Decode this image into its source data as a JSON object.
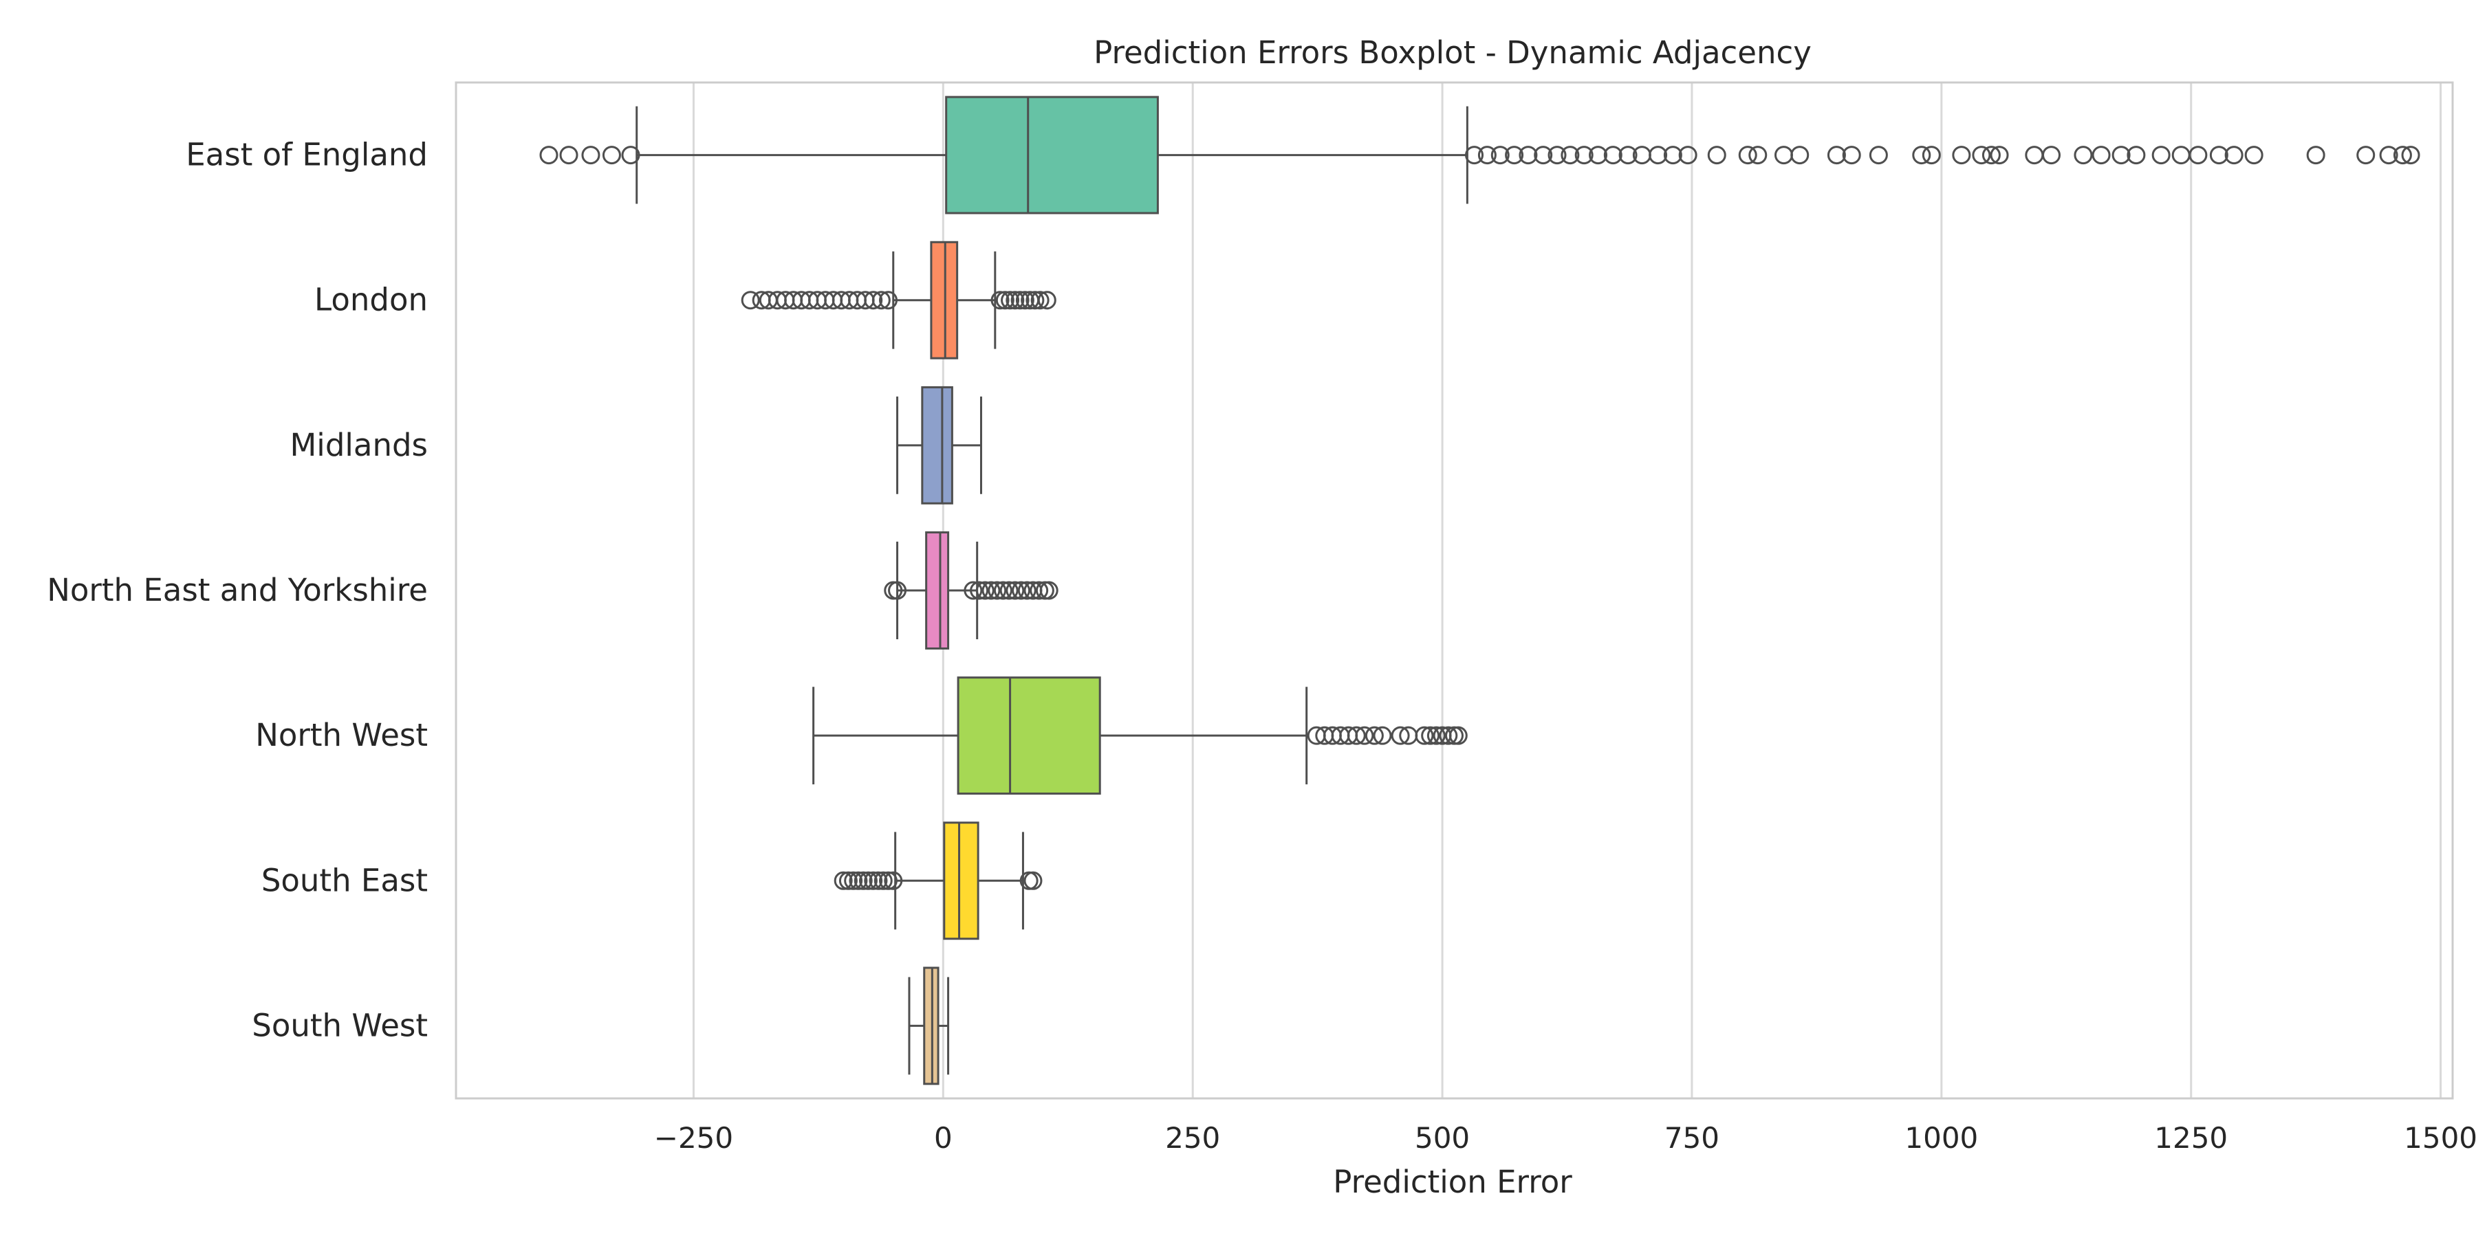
{
  "chart_data": {
    "type": "boxplot",
    "title": "Prediction Errors Boxplot - Dynamic Adjacency",
    "xlabel": "Prediction Error",
    "ylabel": "",
    "xlim": [
      -488,
      1512
    ],
    "xticks": [
      -250,
      0,
      250,
      500,
      750,
      1000,
      1250,
      1500
    ],
    "xtick_labels": [
      "−250",
      "0",
      "250",
      "500",
      "750",
      "1000",
      "1250",
      "1500"
    ],
    "grid": "vertical",
    "categories": [
      "East of England",
      "London",
      "Midlands",
      "North East and Yorkshire",
      "North West",
      "South East",
      "South West"
    ],
    "colors": [
      "#66c2a5",
      "#fc8d62",
      "#8da0cb",
      "#e78ac3",
      "#a6d854",
      "#ffd92f",
      "#e5c494"
    ],
    "boxes": [
      {
        "name": "East of England",
        "whisker_low": -307,
        "q1": 3,
        "median": 85,
        "q3": 215,
        "whisker_high": 525,
        "outliers": [
          -395,
          -375,
          -353,
          -332,
          -313,
          532,
          545,
          558,
          572,
          586,
          601,
          615,
          628,
          642,
          656,
          671,
          686,
          700,
          716,
          731,
          746,
          775,
          806,
          816,
          842,
          858,
          895,
          910,
          937,
          980,
          990,
          1020,
          1040,
          1050,
          1058,
          1093,
          1110,
          1142,
          1160,
          1180,
          1195,
          1220,
          1240,
          1257,
          1278,
          1293,
          1313,
          1375,
          1425,
          1448,
          1462,
          1470
        ]
      },
      {
        "name": "London",
        "whisker_low": -50,
        "q1": -12,
        "median": 2,
        "q3": 14,
        "whisker_high": 52,
        "outliers": [
          -193,
          -182,
          -175,
          -166,
          -158,
          -150,
          -142,
          -134,
          -126,
          -118,
          -110,
          -102,
          -94,
          -86,
          -78,
          -70,
          -62,
          -55,
          57,
          62,
          67,
          72,
          77,
          82,
          87,
          92,
          97,
          104
        ]
      },
      {
        "name": "Midlands",
        "whisker_low": -46,
        "q1": -21,
        "median": -1,
        "q3": 9,
        "whisker_high": 38,
        "outliers": []
      },
      {
        "name": "North East and Yorkshire",
        "whisker_low": -46,
        "q1": -17,
        "median": -3,
        "q3": 5,
        "whisker_high": 34,
        "outliers": [
          -50,
          -46,
          30,
          36,
          42,
          48,
          54,
          60,
          66,
          72,
          78,
          84,
          90,
          96,
          102,
          106
        ]
      },
      {
        "name": "North West",
        "whisker_low": -130,
        "q1": 15,
        "median": 67,
        "q3": 157,
        "whisker_high": 364,
        "outliers": [
          374,
          382,
          390,
          398,
          406,
          414,
          422,
          432,
          440,
          458,
          466,
          482,
          488,
          494,
          500,
          506,
          512,
          516
        ]
      },
      {
        "name": "South East",
        "whisker_low": -48,
        "q1": 1,
        "median": 16,
        "q3": 35,
        "whisker_high": 80,
        "outliers": [
          -100,
          -95,
          -90,
          -85,
          -80,
          -75,
          -70,
          -65,
          -60,
          -55,
          -50,
          86,
          90
        ]
      },
      {
        "name": "South West",
        "whisker_low": -34,
        "q1": -19,
        "median": -11,
        "q3": -5,
        "whisker_high": 5,
        "outliers": []
      }
    ]
  }
}
